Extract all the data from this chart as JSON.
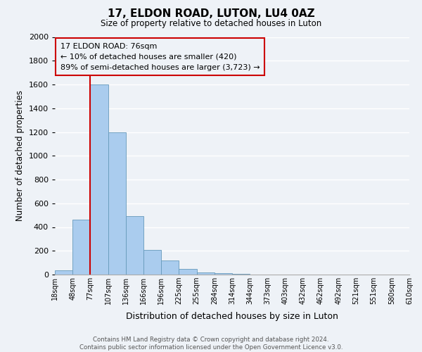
{
  "title": "17, ELDON ROAD, LUTON, LU4 0AZ",
  "subtitle": "Size of property relative to detached houses in Luton",
  "xlabel": "Distribution of detached houses by size in Luton",
  "ylabel": "Number of detached properties",
  "bin_labels": [
    "18sqm",
    "48sqm",
    "77sqm",
    "107sqm",
    "136sqm",
    "166sqm",
    "196sqm",
    "225sqm",
    "255sqm",
    "284sqm",
    "314sqm",
    "344sqm",
    "373sqm",
    "403sqm",
    "432sqm",
    "462sqm",
    "492sqm",
    "521sqm",
    "551sqm",
    "580sqm",
    "610sqm"
  ],
  "bar_values": [
    35,
    460,
    1600,
    1200,
    490,
    210,
    120,
    45,
    20,
    10,
    5,
    0,
    0,
    0,
    0,
    0,
    0,
    0,
    0,
    0
  ],
  "bar_color": "#aaccee",
  "bar_edgecolor": "#6699bb",
  "vline_color": "#cc0000",
  "ylim": [
    0,
    2000
  ],
  "yticks": [
    0,
    200,
    400,
    600,
    800,
    1000,
    1200,
    1400,
    1600,
    1800,
    2000
  ],
  "annotation_line1": "17 ELDON ROAD: 76sqm",
  "annotation_line2": "← 10% of detached houses are smaller (420)",
  "annotation_line3": "89% of semi-detached houses are larger (3,723) →",
  "annotation_box_color": "#cc0000",
  "footer_text": "Contains HM Land Registry data © Crown copyright and database right 2024.\nContains public sector information licensed under the Open Government Licence v3.0.",
  "bg_color": "#eef2f7",
  "grid_color": "#ffffff"
}
